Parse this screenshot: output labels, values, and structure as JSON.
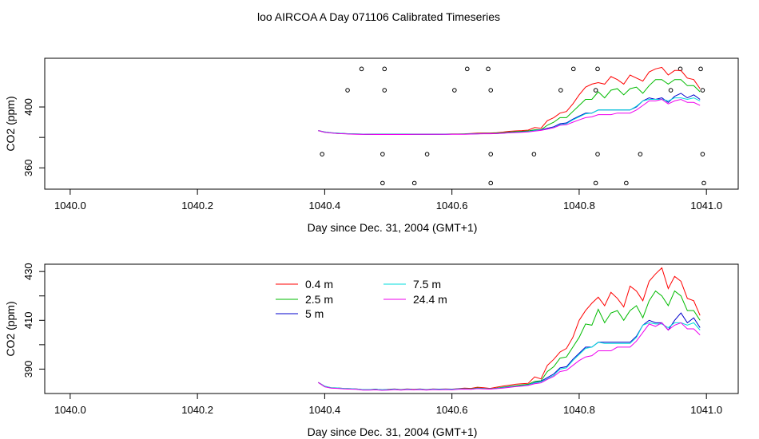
{
  "page_title": "loo AIRCOA A  Day 071106  Calibrated Timeseries",
  "colors": {
    "0.4 m": "#ff0000",
    "2.5 m": "#00bb00",
    "5 m": "#0000cc",
    "7.5 m": "#00dddd",
    "24.4 m": "#ee00ee",
    "axis": "#000000"
  },
  "chart_data": [
    {
      "type": "line",
      "xlabel": "Day since Dec. 31, 2004 (GMT+1)",
      "ylabel": "CO2 (ppm)",
      "xlim": [
        1039.96,
        1041.05
      ],
      "ylim": [
        346,
        432
      ],
      "xticks": [
        1040.0,
        1040.2,
        1040.4,
        1040.6,
        1040.8,
        1041.0
      ],
      "xtick_labels": [
        "1040.0",
        "1040.2",
        "1040.4",
        "1040.6",
        "1040.8",
        "1041.0"
      ],
      "yticks": [
        360,
        380,
        400
      ],
      "ytick_labels": [
        "360",
        "",
        "400"
      ],
      "markers": {
        "x": [
          1040.458,
          1040.494,
          1040.624,
          1040.657,
          1040.791,
          1040.829,
          1040.959,
          1040.991,
          1040.436,
          1040.494,
          1040.604,
          1040.661,
          1040.771,
          1040.826,
          1040.944,
          1040.994,
          1040.396,
          1040.491,
          1040.561,
          1040.661,
          1040.729,
          1040.829,
          1040.896,
          1040.994,
          1040.491,
          1040.541,
          1040.661,
          1040.826,
          1040.874,
          1040.996
        ],
        "y": [
          425,
          425,
          425,
          425,
          425,
          425,
          425,
          425,
          411,
          411,
          411,
          411,
          411,
          411,
          411,
          411,
          369,
          369,
          369,
          369,
          369,
          369,
          369,
          369,
          350,
          350,
          350,
          350,
          350,
          350
        ]
      },
      "x": [
        1040.39,
        1040.4,
        1040.41,
        1040.42,
        1040.43,
        1040.44,
        1040.45,
        1040.46,
        1040.47,
        1040.48,
        1040.49,
        1040.5,
        1040.51,
        1040.52,
        1040.53,
        1040.54,
        1040.55,
        1040.56,
        1040.57,
        1040.58,
        1040.59,
        1040.6,
        1040.61,
        1040.62,
        1040.63,
        1040.64,
        1040.65,
        1040.66,
        1040.67,
        1040.68,
        1040.69,
        1040.7,
        1040.71,
        1040.72,
        1040.73,
        1040.74,
        1040.75,
        1040.76,
        1040.77,
        1040.78,
        1040.79,
        1040.8,
        1040.81,
        1040.82,
        1040.83,
        1040.84,
        1040.85,
        1040.86,
        1040.87,
        1040.88,
        1040.89,
        1040.9,
        1040.91,
        1040.92,
        1040.93,
        1040.94,
        1040.95,
        1040.96,
        1040.97,
        1040.98,
        1040.99
      ],
      "series": [
        {
          "name": "0.4 m",
          "values": [
            384.5,
            383.6,
            383.1,
            382.8,
            382.6,
            382.4,
            382.3,
            382.2,
            382.1,
            382.0,
            382.0,
            382.0,
            382.0,
            382.0,
            382.1,
            382.1,
            382.1,
            382.1,
            382.2,
            382.2,
            382.2,
            382.3,
            382.3,
            382.4,
            382.6,
            382.8,
            382.9,
            382.9,
            383.1,
            383.5,
            384.0,
            384.3,
            384.5,
            384.8,
            386.5,
            386.0,
            391.0,
            393.0,
            396.0,
            397.0,
            402.0,
            408.0,
            413.0,
            415.0,
            416.0,
            415.0,
            420.0,
            418.0,
            415.0,
            421.0,
            419.0,
            417.0,
            423.0,
            425.0,
            426.0,
            421.0,
            424.0,
            424.0,
            419.0,
            418.0,
            412.0
          ]
        },
        {
          "name": "2.5 m",
          "values": [
            384.5,
            383.4,
            383.0,
            382.6,
            382.5,
            382.3,
            382.2,
            382.2,
            382.1,
            382.0,
            382.0,
            382.0,
            382.0,
            382.0,
            382.0,
            382.0,
            382.1,
            382.1,
            382.1,
            382.1,
            382.2,
            382.2,
            382.2,
            382.3,
            382.4,
            382.6,
            382.6,
            382.6,
            382.8,
            383.1,
            383.5,
            383.8,
            384.0,
            384.3,
            385.0,
            385.0,
            388.0,
            390.0,
            393.0,
            393.0,
            397.0,
            401.0,
            405.0,
            405.0,
            410.0,
            406.0,
            411.0,
            412.0,
            408.0,
            412.0,
            413.0,
            409.0,
            414.0,
            418.0,
            418.0,
            415.0,
            418.0,
            418.0,
            414.0,
            414.0,
            410.0
          ]
        },
        {
          "name": "5 m",
          "values": [
            384.5,
            383.5,
            383.0,
            382.7,
            382.5,
            382.3,
            382.2,
            382.1,
            382.1,
            382.0,
            382.0,
            382.0,
            382.0,
            382.0,
            382.0,
            382.1,
            382.1,
            382.1,
            382.1,
            382.1,
            382.1,
            382.2,
            382.2,
            382.2,
            382.3,
            382.4,
            382.5,
            382.5,
            382.6,
            382.8,
            383.2,
            383.4,
            383.6,
            383.9,
            384.5,
            385.0,
            386.0,
            387.0,
            389.0,
            389.5,
            392.0,
            394.0,
            396.0,
            396.0,
            398.0,
            398.0,
            398.0,
            398.0,
            398.0,
            398.0,
            400.0,
            404.0,
            406.0,
            405.0,
            406.0,
            403.0,
            407.0,
            409.0,
            406.0,
            408.0,
            405.0
          ]
        },
        {
          "name": "7.5 m",
          "values": [
            384.5,
            383.6,
            383.1,
            382.8,
            382.6,
            382.4,
            382.3,
            382.2,
            382.1,
            382.0,
            382.0,
            382.0,
            382.0,
            382.0,
            382.0,
            382.0,
            382.1,
            382.1,
            382.1,
            382.1,
            382.1,
            382.2,
            382.2,
            382.2,
            382.3,
            382.4,
            382.5,
            382.5,
            382.6,
            382.8,
            383.1,
            383.3,
            383.5,
            383.8,
            384.4,
            384.8,
            385.5,
            386.6,
            388.5,
            389.0,
            391.5,
            393.5,
            395.5,
            396.0,
            398.0,
            398.0,
            398.0,
            398.0,
            398.0,
            398.0,
            400.5,
            404.0,
            405.0,
            405.0,
            405.0,
            404.0,
            406.0,
            406.0,
            405.0,
            406.0,
            404.0
          ]
        },
        {
          "name": "24.4 m",
          "values": [
            384.5,
            383.4,
            382.9,
            382.6,
            382.4,
            382.2,
            382.1,
            382.0,
            382.0,
            381.9,
            381.9,
            381.9,
            381.9,
            381.9,
            381.9,
            382.0,
            382.0,
            382.0,
            382.0,
            382.0,
            382.0,
            382.1,
            382.1,
            382.1,
            382.2,
            382.3,
            382.4,
            382.4,
            382.5,
            382.7,
            383.0,
            383.2,
            383.4,
            383.6,
            384.2,
            384.6,
            385.5,
            386.4,
            388.0,
            388.3,
            390.0,
            391.5,
            393.0,
            393.5,
            395.0,
            395.0,
            395.0,
            396.0,
            396.0,
            396.0,
            398.0,
            401.0,
            404.0,
            404.0,
            405.0,
            402.0,
            404.0,
            405.0,
            403.0,
            403.0,
            401.0
          ]
        }
      ]
    },
    {
      "type": "line",
      "xlabel": "Day since Dec. 31, 2004 (GMT+1)",
      "ylabel": "CO2 (ppm)",
      "xlim": [
        1039.96,
        1041.05
      ],
      "ylim": [
        380,
        433
      ],
      "xticks": [
        1040.0,
        1040.2,
        1040.4,
        1040.6,
        1040.8,
        1041.0
      ],
      "xtick_labels": [
        "1040.0",
        "1040.2",
        "1040.4",
        "1040.6",
        "1040.8",
        "1041.0"
      ],
      "yticks": [
        390,
        400,
        410,
        420,
        430
      ],
      "ytick_labels": [
        "390",
        "",
        "410",
        "",
        "430"
      ],
      "legend_position": "top-center",
      "x": [
        1040.39,
        1040.4,
        1040.41,
        1040.42,
        1040.43,
        1040.44,
        1040.45,
        1040.46,
        1040.47,
        1040.48,
        1040.49,
        1040.5,
        1040.51,
        1040.52,
        1040.53,
        1040.54,
        1040.55,
        1040.56,
        1040.57,
        1040.58,
        1040.59,
        1040.6,
        1040.61,
        1040.62,
        1040.63,
        1040.64,
        1040.65,
        1040.66,
        1040.67,
        1040.68,
        1040.69,
        1040.7,
        1040.71,
        1040.72,
        1040.73,
        1040.74,
        1040.75,
        1040.76,
        1040.77,
        1040.78,
        1040.79,
        1040.8,
        1040.81,
        1040.82,
        1040.83,
        1040.84,
        1040.85,
        1040.86,
        1040.87,
        1040.88,
        1040.89,
        1040.9,
        1040.91,
        1040.92,
        1040.93,
        1040.94,
        1040.95,
        1040.96,
        1040.97,
        1040.98,
        1040.99
      ],
      "series": [
        {
          "name": "0.4 m",
          "values": [
            384.5,
            383.0,
            382.4,
            382.3,
            382.1,
            382.0,
            381.9,
            381.6,
            381.6,
            381.8,
            381.4,
            381.7,
            381.9,
            381.6,
            381.9,
            381.7,
            381.9,
            381.6,
            381.9,
            381.8,
            381.9,
            381.8,
            382.0,
            382.2,
            382.1,
            382.6,
            382.4,
            382.1,
            382.6,
            383.0,
            383.4,
            383.8,
            384.0,
            384.2,
            386.8,
            386.0,
            391.5,
            394.0,
            397.0,
            398.5,
            403.0,
            410.0,
            414.0,
            417.0,
            419.5,
            416.0,
            421.5,
            419.0,
            415.5,
            424.0,
            422.0,
            418.0,
            426.0,
            429.0,
            431.5,
            423.0,
            428.0,
            426.0,
            419.0,
            418.0,
            412.0
          ]
        },
        {
          "name": "2.5 m",
          "values": [
            384.5,
            382.8,
            382.3,
            382.2,
            382.0,
            381.9,
            381.8,
            381.5,
            381.5,
            381.7,
            381.5,
            381.6,
            381.8,
            381.5,
            381.8,
            381.6,
            381.8,
            381.5,
            381.8,
            381.7,
            381.8,
            381.7,
            381.9,
            382.0,
            381.9,
            382.3,
            382.1,
            381.9,
            382.2,
            382.6,
            382.9,
            383.2,
            383.5,
            383.8,
            385.0,
            385.2,
            389.0,
            391.0,
            394.5,
            395.0,
            399.0,
            403.0,
            408.5,
            408.0,
            414.5,
            409.0,
            413.0,
            414.0,
            410.0,
            414.0,
            416.0,
            411.0,
            418.0,
            422.0,
            420.0,
            416.0,
            422.0,
            420.0,
            414.0,
            414.0,
            410.0
          ]
        },
        {
          "name": "5 m",
          "values": [
            384.5,
            382.9,
            382.3,
            382.2,
            382.0,
            381.9,
            381.8,
            381.5,
            381.5,
            381.7,
            381.5,
            381.6,
            381.8,
            381.5,
            381.8,
            381.6,
            381.8,
            381.5,
            381.8,
            381.7,
            381.8,
            381.7,
            381.9,
            381.9,
            381.8,
            382.1,
            382.0,
            381.9,
            382.1,
            382.4,
            382.7,
            382.9,
            383.2,
            383.5,
            384.5,
            385.0,
            386.5,
            388.0,
            390.5,
            391.0,
            394.0,
            396.5,
            399.0,
            399.0,
            401.0,
            401.0,
            401.0,
            401.0,
            401.0,
            401.0,
            403.5,
            408.0,
            410.0,
            409.0,
            409.0,
            406.0,
            410.0,
            413.0,
            409.0,
            411.0,
            407.0
          ]
        },
        {
          "name": "7.5 m",
          "values": [
            384.5,
            383.0,
            382.4,
            382.3,
            382.1,
            382.0,
            381.9,
            381.6,
            381.6,
            381.7,
            381.5,
            381.6,
            381.8,
            381.5,
            381.8,
            381.6,
            381.8,
            381.5,
            381.8,
            381.7,
            381.8,
            381.7,
            381.9,
            381.9,
            381.8,
            382.1,
            382.0,
            381.9,
            382.1,
            382.4,
            382.7,
            382.9,
            383.2,
            383.5,
            384.3,
            384.8,
            386.0,
            387.5,
            390.0,
            390.5,
            393.5,
            396.0,
            398.5,
            399.0,
            401.0,
            400.5,
            400.5,
            400.5,
            400.5,
            400.5,
            403.0,
            408.0,
            409.0,
            408.5,
            408.5,
            407.0,
            409.0,
            409.0,
            408.0,
            409.0,
            406.0
          ]
        },
        {
          "name": "24.4 m",
          "values": [
            384.5,
            382.7,
            382.2,
            382.1,
            381.9,
            381.8,
            381.7,
            381.4,
            381.4,
            381.5,
            381.3,
            381.4,
            381.6,
            381.4,
            381.6,
            381.5,
            381.6,
            381.4,
            381.6,
            381.5,
            381.6,
            381.5,
            381.7,
            381.8,
            381.7,
            382.0,
            381.9,
            381.8,
            382.0,
            382.2,
            382.5,
            382.8,
            383.0,
            383.3,
            384.0,
            384.4,
            385.8,
            387.0,
            389.0,
            389.5,
            391.5,
            393.5,
            395.0,
            395.5,
            397.5,
            397.5,
            397.5,
            399.0,
            399.0,
            399.0,
            401.5,
            405.0,
            408.5,
            407.5,
            409.0,
            406.0,
            408.0,
            409.0,
            406.5,
            406.5,
            404.0
          ]
        }
      ]
    }
  ]
}
